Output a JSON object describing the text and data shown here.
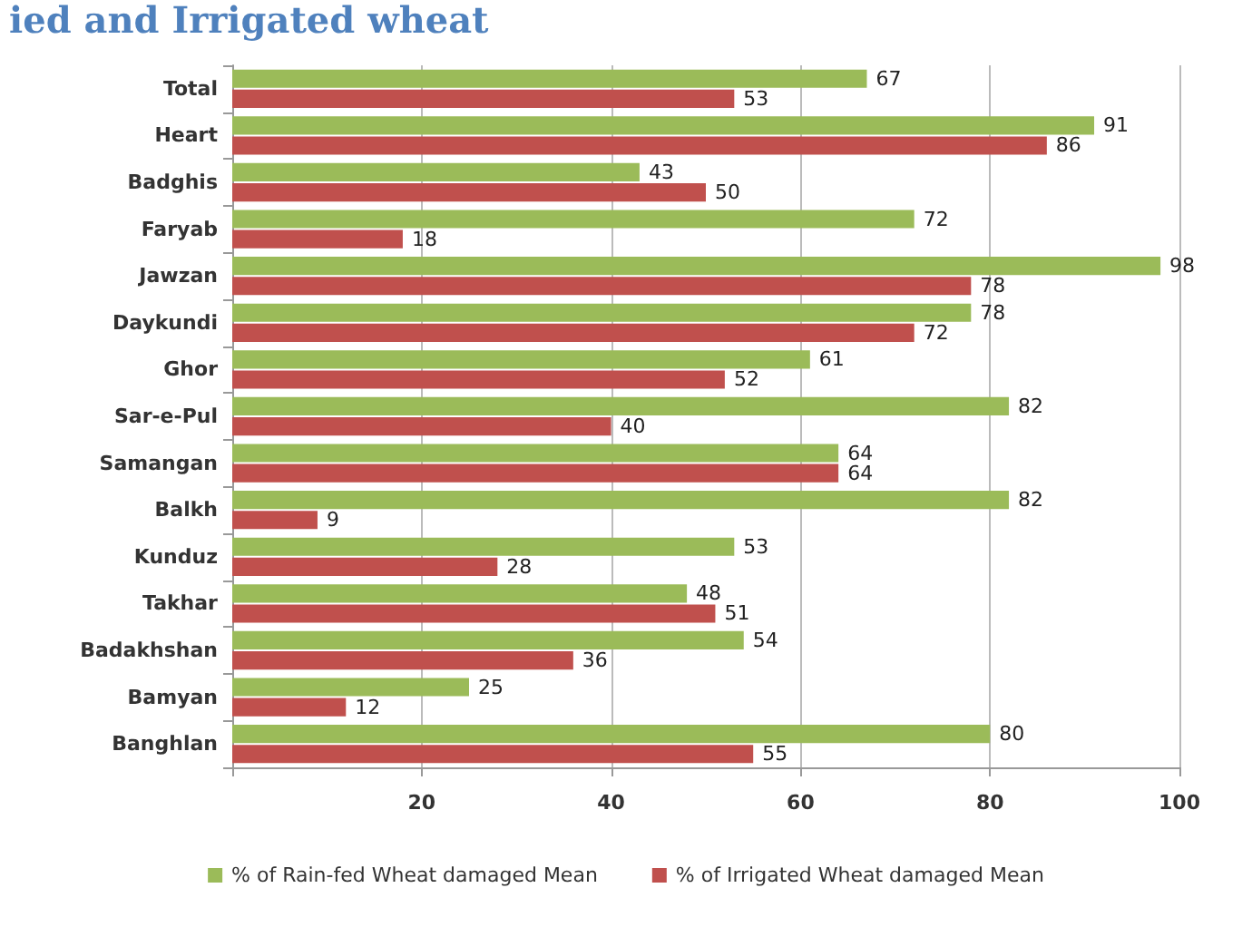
{
  "chart_data": {
    "type": "bar",
    "orientation": "horizontal",
    "title": "ied and Irrigated wheat",
    "categories": [
      "Total",
      "Heart",
      "Badghis",
      "Faryab",
      "Jawzan",
      "Daykundi",
      "Ghor",
      "Sar-e-Pul",
      "Samangan",
      "Balkh",
      "Kunduz",
      "Takhar",
      "Badakhshan",
      "Bamyan",
      "Banghlan"
    ],
    "series": [
      {
        "name": "% of Rain-fed Wheat damaged Mean",
        "color": "#9bbb59",
        "values": [
          67,
          91,
          43,
          72,
          98,
          78,
          61,
          82,
          64,
          82,
          53,
          48,
          54,
          25,
          80
        ]
      },
      {
        "name": "% of Irrigated Wheat damaged Mean",
        "color": "#c0504d",
        "values": [
          53,
          86,
          50,
          18,
          78,
          72,
          52,
          40,
          64,
          9,
          28,
          51,
          36,
          12,
          55
        ]
      }
    ],
    "xlim": [
      0,
      100
    ],
    "xticks": [
      {
        "value": 0,
        "label": null
      },
      20,
      40,
      60,
      80,
      100
    ],
    "grid": "x",
    "legend": "bottom",
    "data_labels": true
  }
}
